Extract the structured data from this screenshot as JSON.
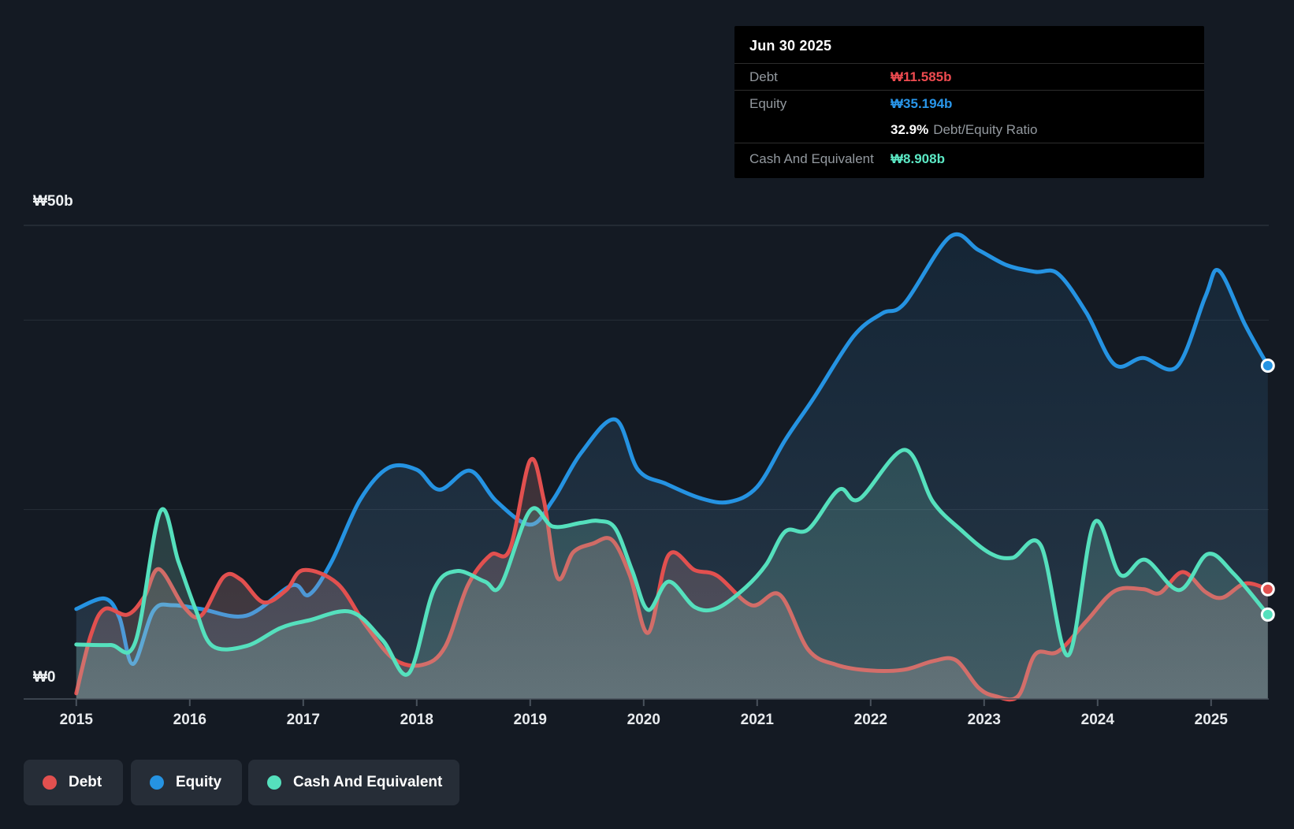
{
  "page": {
    "background": "#141a23"
  },
  "tooltip": {
    "title": "Jun 30 2025",
    "debt": {
      "label": "Debt",
      "value": "₩11.585b",
      "color": "#e2504f"
    },
    "equity": {
      "label": "Equity",
      "value": "₩35.194b",
      "color": "#2593e2"
    },
    "ratio": {
      "value": "32.9%",
      "label": "Debt/Equity Ratio"
    },
    "cash": {
      "label": "Cash And Equivalent",
      "value": "₩8.908b",
      "color": "#55e0bd"
    }
  },
  "legend": {
    "items": [
      {
        "label": "Debt",
        "color": "#e2504f"
      },
      {
        "label": "Equity",
        "color": "#2593e2"
      },
      {
        "label": "Cash And Equivalent",
        "color": "#55e0bd"
      }
    ]
  },
  "chart_data": {
    "type": "area",
    "currency": "₩ (KRW, billions)",
    "x_range": [
      2015,
      2025.5
    ],
    "x_ticks": [
      "2015",
      "2016",
      "2017",
      "2018",
      "2019",
      "2020",
      "2021",
      "2022",
      "2023",
      "2024",
      "2025"
    ],
    "y_range": [
      0,
      50
    ],
    "y_top_label": "₩50b",
    "y_zero_label": "₩0",
    "gridline_values": [
      50,
      40,
      20
    ],
    "legend_position": "bottom-left",
    "grid": true,
    "end_markers": true,
    "series": [
      {
        "name": "Equity",
        "color": "#2593e2",
        "points": [
          [
            2015.0,
            9.5
          ],
          [
            2015.25,
            10.6
          ],
          [
            2015.38,
            8.6
          ],
          [
            2015.5,
            3.7
          ],
          [
            2015.68,
            9.3
          ],
          [
            2015.85,
            9.9
          ],
          [
            2016.1,
            9.5
          ],
          [
            2016.5,
            8.8
          ],
          [
            2016.9,
            12.0
          ],
          [
            2017.05,
            11.0
          ],
          [
            2017.25,
            14.5
          ],
          [
            2017.5,
            21.0
          ],
          [
            2017.75,
            24.4
          ],
          [
            2018.0,
            24.2
          ],
          [
            2018.2,
            22.1
          ],
          [
            2018.47,
            24.1
          ],
          [
            2018.7,
            20.9
          ],
          [
            2019.0,
            18.4
          ],
          [
            2019.2,
            21.0
          ],
          [
            2019.45,
            26.0
          ],
          [
            2019.75,
            29.5
          ],
          [
            2019.95,
            24.2
          ],
          [
            2020.2,
            22.7
          ],
          [
            2020.5,
            21.2
          ],
          [
            2020.75,
            20.8
          ],
          [
            2021.0,
            22.4
          ],
          [
            2021.25,
            27.4
          ],
          [
            2021.5,
            31.8
          ],
          [
            2021.85,
            38.3
          ],
          [
            2022.1,
            40.7
          ],
          [
            2022.3,
            41.8
          ],
          [
            2022.7,
            48.8
          ],
          [
            2022.95,
            47.4
          ],
          [
            2023.2,
            45.8
          ],
          [
            2023.45,
            45.1
          ],
          [
            2023.65,
            44.9
          ],
          [
            2023.9,
            40.8
          ],
          [
            2024.15,
            35.3
          ],
          [
            2024.4,
            36.0
          ],
          [
            2024.7,
            35.1
          ],
          [
            2024.95,
            42.5
          ],
          [
            2025.07,
            45.2
          ],
          [
            2025.3,
            39.5
          ],
          [
            2025.5,
            35.194
          ]
        ]
      },
      {
        "name": "Debt",
        "color": "#e2504f",
        "points": [
          [
            2015.0,
            0.6
          ],
          [
            2015.13,
            6.8
          ],
          [
            2015.25,
            9.5
          ],
          [
            2015.45,
            8.9
          ],
          [
            2015.6,
            10.8
          ],
          [
            2015.73,
            13.7
          ],
          [
            2015.95,
            9.7
          ],
          [
            2016.1,
            8.8
          ],
          [
            2016.3,
            12.9
          ],
          [
            2016.45,
            12.6
          ],
          [
            2016.65,
            10.2
          ],
          [
            2016.85,
            11.5
          ],
          [
            2017.0,
            13.6
          ],
          [
            2017.3,
            12.2
          ],
          [
            2017.55,
            7.8
          ],
          [
            2017.8,
            4.2
          ],
          [
            2018.05,
            3.6
          ],
          [
            2018.25,
            5.5
          ],
          [
            2018.45,
            12.0
          ],
          [
            2018.65,
            15.2
          ],
          [
            2018.82,
            15.8
          ],
          [
            2019.0,
            25.2
          ],
          [
            2019.12,
            21.0
          ],
          [
            2019.24,
            12.8
          ],
          [
            2019.38,
            15.5
          ],
          [
            2019.55,
            16.4
          ],
          [
            2019.72,
            16.8
          ],
          [
            2019.88,
            13.0
          ],
          [
            2020.04,
            7.0
          ],
          [
            2020.22,
            15.2
          ],
          [
            2020.45,
            13.6
          ],
          [
            2020.65,
            13.0
          ],
          [
            2020.95,
            9.9
          ],
          [
            2021.2,
            11.0
          ],
          [
            2021.45,
            5.2
          ],
          [
            2021.7,
            3.6
          ],
          [
            2022.0,
            3.0
          ],
          [
            2022.3,
            3.1
          ],
          [
            2022.55,
            4.0
          ],
          [
            2022.75,
            4.1
          ],
          [
            2022.95,
            1.2
          ],
          [
            2023.1,
            0.3
          ],
          [
            2023.3,
            0.3
          ],
          [
            2023.45,
            4.7
          ],
          [
            2023.65,
            5.0
          ],
          [
            2023.9,
            8.2
          ],
          [
            2024.15,
            11.4
          ],
          [
            2024.4,
            11.6
          ],
          [
            2024.55,
            11.2
          ],
          [
            2024.75,
            13.4
          ],
          [
            2024.95,
            11.3
          ],
          [
            2025.1,
            10.7
          ],
          [
            2025.3,
            12.2
          ],
          [
            2025.5,
            11.585
          ]
        ]
      },
      {
        "name": "Cash And Equivalent",
        "color": "#55e0bd",
        "points": [
          [
            2015.0,
            5.75
          ],
          [
            2015.3,
            5.7
          ],
          [
            2015.52,
            6.0
          ],
          [
            2015.74,
            19.8
          ],
          [
            2015.9,
            14.5
          ],
          [
            2016.05,
            9.5
          ],
          [
            2016.2,
            5.6
          ],
          [
            2016.5,
            5.6
          ],
          [
            2016.8,
            7.5
          ],
          [
            2017.05,
            8.3
          ],
          [
            2017.42,
            9.2
          ],
          [
            2017.7,
            6.2
          ],
          [
            2017.93,
            2.7
          ],
          [
            2018.15,
            11.5
          ],
          [
            2018.35,
            13.5
          ],
          [
            2018.6,
            12.4
          ],
          [
            2018.74,
            12.0
          ],
          [
            2019.0,
            19.9
          ],
          [
            2019.2,
            18.2
          ],
          [
            2019.45,
            18.6
          ],
          [
            2019.6,
            18.8
          ],
          [
            2019.75,
            18.0
          ],
          [
            2019.9,
            13.5
          ],
          [
            2020.04,
            9.4
          ],
          [
            2020.22,
            12.4
          ],
          [
            2020.45,
            9.7
          ],
          [
            2020.65,
            9.6
          ],
          [
            2020.9,
            11.8
          ],
          [
            2021.08,
            14.2
          ],
          [
            2021.25,
            17.7
          ],
          [
            2021.45,
            17.9
          ],
          [
            2021.72,
            22.1
          ],
          [
            2021.9,
            21.1
          ],
          [
            2022.3,
            26.3
          ],
          [
            2022.55,
            20.8
          ],
          [
            2022.8,
            17.8
          ],
          [
            2023.05,
            15.4
          ],
          [
            2023.25,
            14.9
          ],
          [
            2023.5,
            16.2
          ],
          [
            2023.74,
            4.6
          ],
          [
            2023.97,
            18.6
          ],
          [
            2024.2,
            13.1
          ],
          [
            2024.42,
            14.7
          ],
          [
            2024.72,
            11.5
          ],
          [
            2024.97,
            15.3
          ],
          [
            2025.2,
            13.2
          ],
          [
            2025.5,
            8.908
          ]
        ]
      }
    ]
  }
}
